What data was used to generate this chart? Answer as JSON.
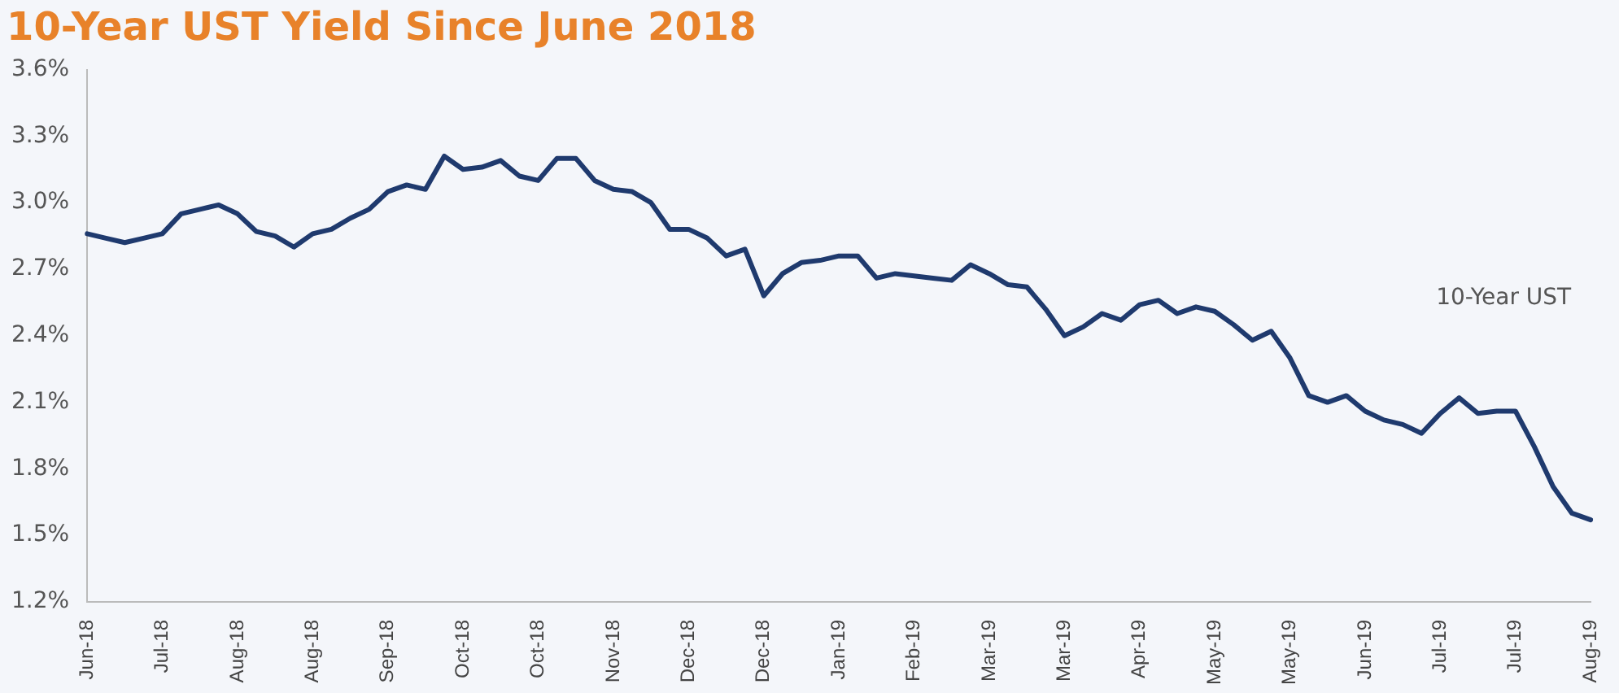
{
  "chart_data": {
    "type": "line",
    "title": "10-Year UST Yield Since June 2018",
    "categories": [
      "Jun-18",
      null,
      null,
      null,
      "Jul-18",
      null,
      null,
      null,
      "Aug-18",
      null,
      null,
      null,
      "Aug-18",
      null,
      null,
      null,
      "Sep-18",
      null,
      null,
      null,
      "Oct-18",
      null,
      null,
      null,
      "Oct-18",
      null,
      null,
      null,
      "Nov-18",
      null,
      null,
      null,
      "Dec-18",
      null,
      null,
      null,
      "Dec-18",
      null,
      null,
      null,
      "Jan-19",
      null,
      null,
      null,
      "Feb-19",
      null,
      null,
      null,
      "Mar-19",
      null,
      null,
      null,
      "Mar-19",
      null,
      null,
      null,
      "Apr-19",
      null,
      null,
      null,
      "May-19",
      null,
      null,
      null,
      "May-19",
      null,
      null,
      null,
      "Jun-19",
      null,
      null,
      null,
      "Jul-19",
      null,
      null,
      null,
      "Jul-19",
      null,
      null,
      null,
      "Aug-19"
    ],
    "series": [
      {
        "name": "10-Year UST",
        "color": "#1f3a6e",
        "values": [
          2.86,
          2.84,
          2.82,
          2.84,
          2.86,
          2.95,
          2.97,
          2.99,
          2.95,
          2.87,
          2.85,
          2.8,
          2.86,
          2.88,
          2.93,
          2.97,
          3.05,
          3.08,
          3.06,
          3.21,
          3.15,
          3.16,
          3.19,
          3.12,
          3.1,
          3.2,
          3.2,
          3.1,
          3.06,
          3.05,
          3.0,
          2.88,
          2.88,
          2.84,
          2.76,
          2.79,
          2.58,
          2.68,
          2.73,
          2.74,
          2.76,
          2.76,
          2.66,
          2.68,
          2.67,
          2.66,
          2.65,
          2.72,
          2.68,
          2.63,
          2.62,
          2.52,
          2.4,
          2.44,
          2.5,
          2.47,
          2.54,
          2.56,
          2.5,
          2.53,
          2.51,
          2.45,
          2.38,
          2.42,
          2.3,
          2.13,
          2.1,
          2.13,
          2.06,
          2.02,
          2.0,
          1.96,
          2.05,
          2.12,
          2.05,
          2.06,
          2.06,
          1.9,
          1.72,
          1.6,
          1.57
        ]
      }
    ],
    "ylim": [
      1.2,
      3.6
    ],
    "yticks": [
      {
        "value": 1.2,
        "label": "1.2%"
      },
      {
        "value": 1.5,
        "label": "1.5%"
      },
      {
        "value": 1.8,
        "label": "1.8%"
      },
      {
        "value": 2.1,
        "label": "2.1%"
      },
      {
        "value": 2.4,
        "label": "2.4%"
      },
      {
        "value": 2.7,
        "label": "2.7%"
      },
      {
        "value": 3.0,
        "label": "3.0%"
      },
      {
        "value": 3.3,
        "label": "3.3%"
      },
      {
        "value": 3.6,
        "label": "3.6%"
      }
    ],
    "grid": false,
    "legend": false,
    "marker": "none",
    "line_style": "solid"
  }
}
